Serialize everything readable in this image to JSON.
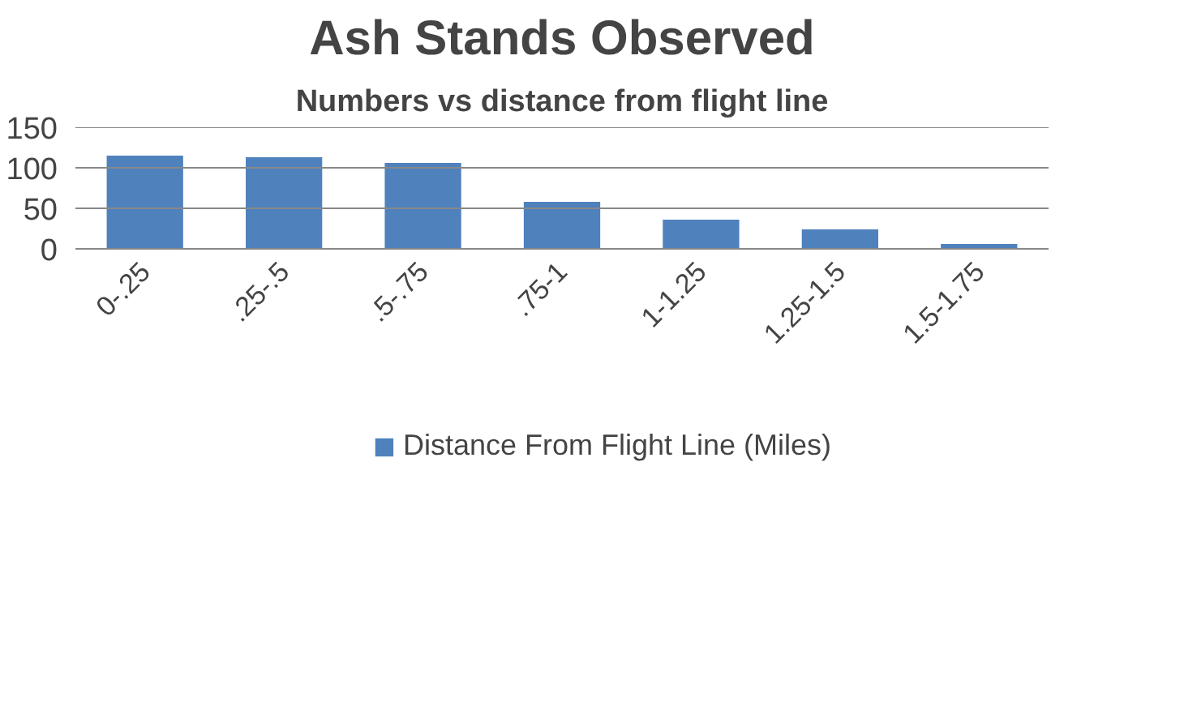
{
  "chart_data": {
    "type": "bar",
    "title": "Ash Stands Observed",
    "subtitle": "Numbers vs distance from flight line",
    "categories": [
      "0-.25",
      ".25-.5",
      ".5-.75",
      ".75-1",
      "1-1.25",
      "1.25-1.5",
      "1.5-1.75"
    ],
    "series": [
      {
        "name": "Distance From Flight Line (Miles)",
        "color": "#4f81bd",
        "values": [
          115,
          113,
          106,
          58,
          36,
          24,
          6
        ]
      }
    ],
    "ylim": [
      0,
      150
    ],
    "yticks": [
      0,
      50,
      100,
      150
    ],
    "grid": "y",
    "legend": "bottom"
  }
}
